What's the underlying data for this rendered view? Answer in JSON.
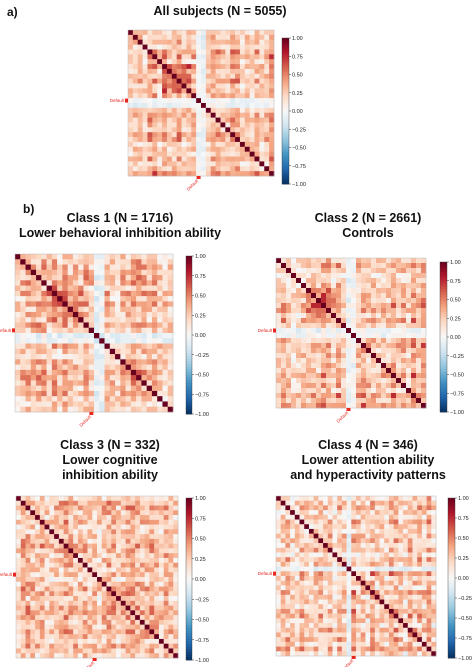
{
  "panel_labels": {
    "a": "a)",
    "b": "b)"
  },
  "titles": {
    "all": "All subjects (N = 5055)",
    "c1_line1": "Class 1  (N = 1716)",
    "c1_line2": "Lower behavioral inhibition ability",
    "c2_line1": "Class 2 (N = 2661)",
    "c2_line2": "Controls",
    "c3_line1": "Class 3 (N = 332)",
    "c3_line2": "Lower cognitive",
    "c3_line3": "inhibition ability",
    "c4_line1": "Class 4 (N = 346)",
    "c4_line2": "Lower attention ability",
    "c4_line3": "and hyperactivity patterns"
  },
  "colors": {
    "neg": "#053061",
    "mid": "#f7f7f7",
    "pos": "#67001f",
    "marker": "#e8271f"
  },
  "chart_data": [
    {
      "type": "heatmap",
      "panel": "all",
      "title": "All subjects (N = 5055)",
      "matrix_size": 30,
      "diagonal_value": 1.0,
      "value_range": [
        -1.0,
        1.0
      ],
      "colormap": "RdBu_r",
      "y_tick_label": "Default",
      "x_tick_label": "Default",
      "colorbar_ticks": [
        "1.00",
        "0.75",
        "0.50",
        "0.25",
        "0.00",
        "−0.25",
        "−0.50",
        "−0.75",
        "−1.00"
      ],
      "seed": 11,
      "mean": 0.33,
      "spread": 0.18,
      "neg_rows": [
        14,
        15
      ],
      "strong_block": [
        7,
        12
      ]
    },
    {
      "type": "heatmap",
      "panel": "class1",
      "title": "Class 1  (N = 1716) Lower behavioral inhibition ability",
      "matrix_size": 30,
      "diagonal_value": 1.0,
      "value_range": [
        -1.0,
        1.0
      ],
      "colormap": "RdBu_r",
      "y_tick_label": "Default",
      "x_tick_label": "Default",
      "colorbar_ticks": [
        "1.00",
        "0.75",
        "0.50",
        "0.25",
        "0.00",
        "−0.25",
        "−0.50",
        "−0.75",
        "−1.00"
      ],
      "seed": 23,
      "mean": 0.3,
      "spread": 0.2,
      "neg_rows": [
        15,
        16
      ],
      "strong_block": [
        6,
        12
      ]
    },
    {
      "type": "heatmap",
      "panel": "class2",
      "title": "Class 2 (N = 2661) Controls",
      "matrix_size": 30,
      "diagonal_value": 1.0,
      "value_range": [
        -1.0,
        1.0
      ],
      "colormap": "RdBu_r",
      "y_tick_label": "Default",
      "x_tick_label": "Default",
      "colorbar_ticks": [
        "1.00",
        "0.75",
        "0.50",
        "0.25",
        "0.00",
        "−0.25",
        "−0.50",
        "−0.75",
        "−1.00"
      ],
      "seed": 37,
      "mean": 0.32,
      "spread": 0.19,
      "neg_rows": [
        14,
        15
      ],
      "strong_block": [
        6,
        11
      ]
    },
    {
      "type": "heatmap",
      "panel": "class3",
      "title": "Class 3 (N = 332) Lower cognitive inhibition ability",
      "matrix_size": 34,
      "diagonal_value": 1.0,
      "value_range": [
        -1.0,
        1.0
      ],
      "colormap": "RdBu_r",
      "y_tick_label": "Default",
      "x_tick_label": "Default",
      "colorbar_ticks": [
        "1.00",
        "0.75",
        "0.50",
        "0.25",
        "0.00",
        "−0.25",
        "−0.50",
        "−0.75",
        "−1.00"
      ],
      "seed": 51,
      "mean": 0.25,
      "spread": 0.22,
      "neg_rows": [],
      "strong_block": []
    },
    {
      "type": "heatmap",
      "panel": "class4",
      "title": "Class 4 (N = 346) Lower attention ability and hyperactivity patterns",
      "matrix_size": 34,
      "diagonal_value": 1.0,
      "value_range": [
        -1.0,
        1.0
      ],
      "colormap": "RdBu_r",
      "y_tick_label": "Default",
      "x_tick_label": "Default",
      "colorbar_ticks": [
        "1.00",
        "0.75",
        "0.50",
        "0.25",
        "0.00",
        "−0.25",
        "−0.50",
        "−0.75",
        "−1.00"
      ],
      "seed": 67,
      "mean": 0.28,
      "spread": 0.22,
      "neg_rows": [
        15
      ],
      "strong_block": []
    }
  ]
}
